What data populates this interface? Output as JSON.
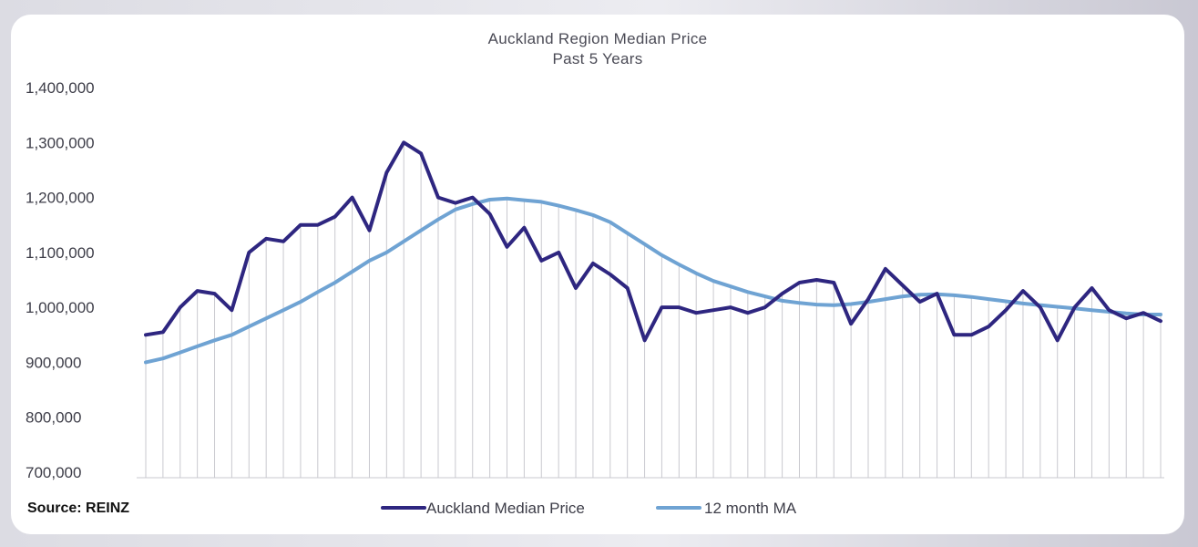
{
  "chart_data": {
    "type": "line",
    "title": "Auckland Region Median Price",
    "subtitle": "Past 5 Years",
    "source": "Source: REINZ",
    "ylim": [
      700000,
      1400000
    ],
    "yticks": [
      700000,
      800000,
      900000,
      1000000,
      1100000,
      1200000,
      1300000,
      1400000
    ],
    "ytick_labels": [
      "700,000",
      "800,000",
      "900,000",
      "1,000,000",
      "1,100,000",
      "1,200,000",
      "1,300,000",
      "1,400,000"
    ],
    "grid": "vertical",
    "legend_position": "bottom",
    "series": [
      {
        "name": "Auckland Median Price",
        "color": "#2e2680",
        "values": [
          950000,
          955000,
          1000000,
          1030000,
          1025000,
          995000,
          1100000,
          1125000,
          1120000,
          1150000,
          1150000,
          1165000,
          1200000,
          1140000,
          1245000,
          1300000,
          1280000,
          1200000,
          1190000,
          1200000,
          1170000,
          1110000,
          1145000,
          1085000,
          1100000,
          1035000,
          1080000,
          1060000,
          1035000,
          940000,
          1000000,
          1000000,
          990000,
          995000,
          1000000,
          990000,
          1000000,
          1025000,
          1045000,
          1050000,
          1045000,
          970000,
          1015000,
          1070000,
          1040000,
          1010000,
          1025000,
          950000,
          950000,
          965000,
          995000,
          1030000,
          1000000,
          940000,
          1000000,
          1035000,
          995000,
          980000,
          990000,
          975000
        ]
      },
      {
        "name": "12 month MA",
        "color": "#6fa3d3",
        "values": [
          900000,
          907000,
          918000,
          929000,
          940000,
          950000,
          965000,
          980000,
          995000,
          1010000,
          1028000,
          1045000,
          1065000,
          1085000,
          1100000,
          1120000,
          1140000,
          1160000,
          1178000,
          1188000,
          1196000,
          1198000,
          1195000,
          1192000,
          1185000,
          1177000,
          1168000,
          1155000,
          1135000,
          1115000,
          1095000,
          1078000,
          1062000,
          1048000,
          1038000,
          1028000,
          1020000,
          1012000,
          1008000,
          1005000,
          1004000,
          1006000,
          1010000,
          1015000,
          1020000,
          1023000,
          1024000,
          1022000,
          1019000,
          1015000,
          1011000,
          1007000,
          1004000,
          1001000,
          998000,
          995000,
          992000,
          989000,
          987000,
          987000
        ]
      }
    ]
  }
}
